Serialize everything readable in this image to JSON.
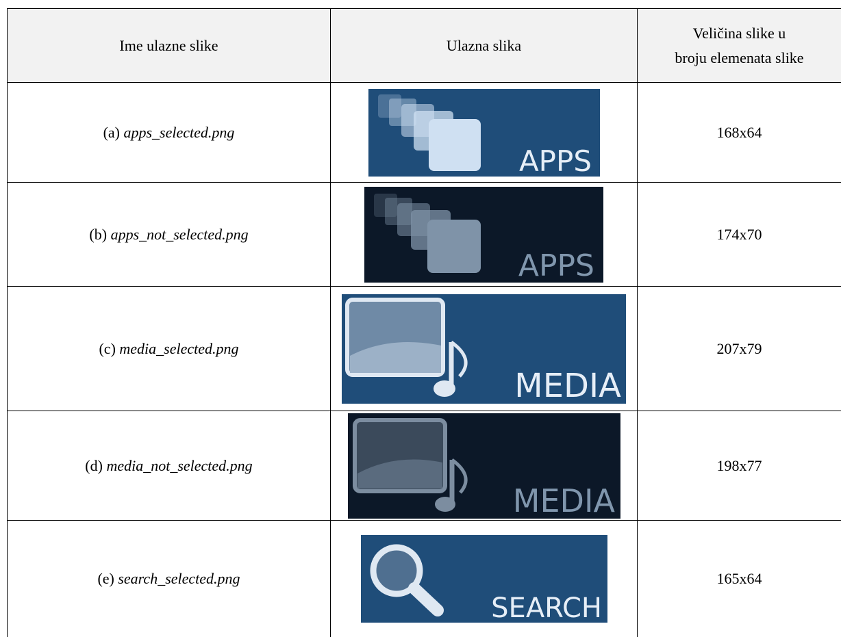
{
  "table": {
    "header": [
      "Ime ulazne slike",
      "Ulazna slika",
      [
        "Veličina slike u",
        "broju elemenata slike"
      ]
    ],
    "rows": [
      {
        "prefix": "(a)",
        "file": "apps_selected.png",
        "image_label": "APPS",
        "size": "168x64"
      },
      {
        "prefix": "(b)",
        "file": "apps_not_selected.png",
        "image_label": "APPS",
        "size": "174x70"
      },
      {
        "prefix": "(c)",
        "file": "media_selected.png",
        "image_label": "MEDIA",
        "size": "207x79"
      },
      {
        "prefix": "(d)",
        "file": "media_not_selected.png",
        "image_label": "MEDIA",
        "size": "198x77"
      },
      {
        "prefix": "(e)",
        "file": "search_selected.png",
        "image_label": "SEARCH",
        "size": "165x64"
      }
    ]
  }
}
